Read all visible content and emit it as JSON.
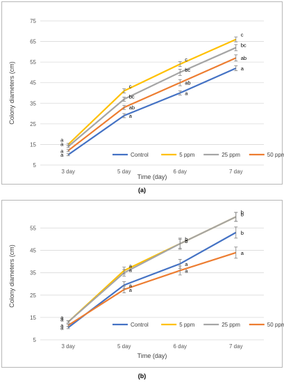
{
  "captions": [
    "(a)",
    "(b)"
  ],
  "chart_data": [
    {
      "type": "line",
      "panel": "(a)",
      "categories": [
        "3 day",
        "5 day",
        "6 day",
        "7 day"
      ],
      "xlabel": "Time (day)",
      "ylabel": "Colony diameters (cm)",
      "ylim": [
        5,
        75
      ],
      "yticks": [
        5,
        15,
        25,
        35,
        45,
        55,
        65,
        75
      ],
      "grid": "horizontal",
      "legend_position": "bottom-right",
      "series": [
        {
          "name": "Control",
          "color": "#4472C4",
          "values": [
            10,
            29,
            40,
            52
          ],
          "errors": [
            0.5,
            1,
            1,
            1.2
          ],
          "letters": [
            "a",
            "a",
            "a",
            "a"
          ]
        },
        {
          "name": "5 ppm",
          "color": "#FFC000",
          "values": [
            15,
            41,
            54,
            66
          ],
          "errors": [
            0.5,
            1,
            1.2,
            1.2
          ],
          "letters": [
            "a",
            "c",
            "c",
            "c"
          ]
        },
        {
          "name": "25 ppm",
          "color": "#A5A5A5",
          "values": [
            14,
            37,
            50,
            62
          ],
          "errors": [
            0.5,
            1,
            1.5,
            1.5
          ],
          "letters": [
            "a",
            "bc",
            "bc",
            "bc"
          ]
        },
        {
          "name": "50 ppm",
          "color": "#ED7D31",
          "values": [
            12,
            33,
            45,
            57
          ],
          "errors": [
            0.5,
            1,
            1.5,
            1.5
          ],
          "letters": [
            "a",
            "ab",
            "ab",
            "ab"
          ]
        }
      ]
    },
    {
      "type": "line",
      "panel": "(b)",
      "categories": [
        "3 day",
        "5 day",
        "6 day",
        "7 day"
      ],
      "xlabel": "Time (day)",
      "ylabel": "Colony diameters (cm)",
      "ylim": [
        5,
        62
      ],
      "yticks": [
        5,
        15,
        25,
        35,
        45,
        55
      ],
      "grid": "horizontal",
      "legend_position": "bottom-right",
      "series": [
        {
          "name": "Control",
          "color": "#4472C4",
          "values": [
            10.5,
            29.5,
            39,
            53
          ],
          "errors": [
            0.5,
            1.5,
            2,
            2.5
          ],
          "letters": [
            "a",
            "a",
            "a",
            "b"
          ]
        },
        {
          "name": "5 ppm",
          "color": "#FFC000",
          "values": [
            13,
            36,
            48,
            60
          ],
          "errors": [
            0.5,
            1.5,
            2,
            2
          ],
          "letters": [
            "a",
            "a",
            "b",
            "b"
          ]
        },
        {
          "name": "25 ppm",
          "color": "#A5A5A5",
          "values": [
            13,
            35,
            48,
            60
          ],
          "errors": [
            0.5,
            1.5,
            2.5,
            2
          ],
          "letters": [
            "a",
            "a",
            "b",
            "b"
          ]
        },
        {
          "name": "50 ppm",
          "color": "#ED7D31",
          "values": [
            11.5,
            27.5,
            36,
            44
          ],
          "errors": [
            0.5,
            1.5,
            2,
            2.5
          ],
          "letters": [
            "a",
            "a",
            "a",
            "a"
          ]
        }
      ]
    }
  ]
}
